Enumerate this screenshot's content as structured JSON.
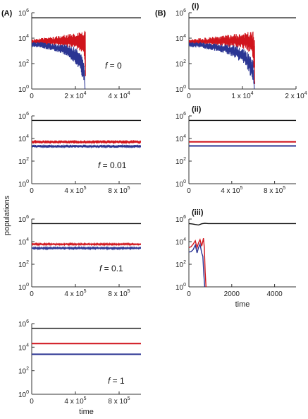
{
  "figure": {
    "label_a": "(A)",
    "label_b": "(B)",
    "ylabel": "populations",
    "xlabel": "time"
  },
  "colors": {
    "black_series": "#111111",
    "red_series": "#d0141c",
    "blue_series": "#2b3593"
  },
  "chart_data": [
    {
      "type": "line",
      "panel": "A1",
      "annotation": {
        "var": "f",
        "eq": " = 0"
      },
      "xlim": [
        0,
        50000
      ],
      "xticks": [
        {
          "v": 0,
          "m": "0",
          "e": ""
        },
        {
          "v": 20000,
          "m": "2 x 10",
          "e": "4"
        },
        {
          "v": 40000,
          "m": "4 x 10",
          "e": "4"
        }
      ],
      "yscale": "log",
      "ylim": [
        1,
        1000000
      ],
      "yticks": [
        {
          "v": 1,
          "m": "10",
          "e": "0"
        },
        {
          "v": 100,
          "m": "10",
          "e": "2"
        },
        {
          "v": 10000,
          "m": "10",
          "e": "4"
        },
        {
          "v": 1000000,
          "m": "10",
          "e": "6"
        }
      ],
      "show_xlabel": false,
      "series": [
        {
          "color": "black",
          "style": "flat",
          "x": [
            0,
            50000
          ],
          "y": [
            400000,
            400000
          ]
        },
        {
          "color": "red",
          "style": "band",
          "x": [
            0,
            4000,
            8000,
            12000,
            16000,
            20000,
            22000,
            24000,
            24600
          ],
          "ylow": [
            3000,
            3000,
            3000,
            2500,
            2000,
            1500,
            1000,
            500,
            1
          ],
          "yhigh": [
            8000,
            10000,
            12000,
            15000,
            20000,
            25000,
            30000,
            35000,
            40000
          ]
        },
        {
          "color": "blue",
          "style": "band",
          "x": [
            0,
            4000,
            8000,
            12000,
            16000,
            20000,
            22000,
            24000,
            24400
          ],
          "ylow": [
            2000,
            1800,
            1200,
            800,
            400,
            100,
            30,
            3,
            1
          ],
          "yhigh": [
            5000,
            5000,
            4000,
            3500,
            3000,
            2000,
            800,
            200,
            1
          ]
        }
      ]
    },
    {
      "type": "line",
      "panel": "B1",
      "title": "(i)",
      "xlim": [
        0,
        20000
      ],
      "xticks": [
        {
          "v": 0,
          "m": "0",
          "e": ""
        },
        {
          "v": 10000,
          "m": "1 x 10",
          "e": "4"
        },
        {
          "v": 20000,
          "m": "2 x 10",
          "e": "4"
        }
      ],
      "yscale": "log",
      "ylim": [
        1,
        1000000
      ],
      "yticks": [
        {
          "v": 1,
          "m": "10",
          "e": "0"
        },
        {
          "v": 100,
          "m": "10",
          "e": "2"
        },
        {
          "v": 10000,
          "m": "10",
          "e": "4"
        },
        {
          "v": 1000000,
          "m": "10",
          "e": "6"
        }
      ],
      "show_xlabel": false,
      "series": [
        {
          "color": "black",
          "style": "flat",
          "x": [
            0,
            20000
          ],
          "y": [
            400000,
            400000
          ]
        },
        {
          "color": "red",
          "style": "band",
          "x": [
            0,
            2000,
            4000,
            6000,
            8000,
            10000,
            11000,
            12000,
            12300
          ],
          "ylow": [
            3000,
            3000,
            3000,
            2500,
            2000,
            1500,
            1000,
            300,
            1
          ],
          "yhigh": [
            8000,
            10000,
            12000,
            15000,
            20000,
            25000,
            30000,
            35000,
            40000
          ]
        },
        {
          "color": "blue",
          "style": "band",
          "x": [
            0,
            2000,
            4000,
            6000,
            8000,
            10000,
            11000,
            12000,
            12200
          ],
          "ylow": [
            2000,
            1800,
            1200,
            800,
            400,
            100,
            30,
            3,
            1
          ],
          "yhigh": [
            5000,
            5000,
            4000,
            3500,
            3000,
            2000,
            800,
            200,
            1
          ]
        }
      ]
    },
    {
      "type": "line",
      "panel": "A2",
      "annotation": {
        "var": "f",
        "eq": " = 0.01"
      },
      "xlim": [
        0,
        1000000
      ],
      "xticks": [
        {
          "v": 0,
          "m": "0",
          "e": ""
        },
        {
          "v": 400000,
          "m": "4 x 10",
          "e": "5"
        },
        {
          "v": 800000,
          "m": "8 x 10",
          "e": "5"
        }
      ],
      "yscale": "log",
      "ylim": [
        1,
        1000000
      ],
      "yticks": [
        {
          "v": 1,
          "m": "10",
          "e": "0"
        },
        {
          "v": 100,
          "m": "10",
          "e": "2"
        },
        {
          "v": 10000,
          "m": "10",
          "e": "4"
        },
        {
          "v": 1000000,
          "m": "10",
          "e": "6"
        }
      ],
      "show_xlabel": false,
      "series": [
        {
          "color": "black",
          "style": "flat",
          "x": [
            0,
            1000000
          ],
          "y": [
            400000,
            400000
          ]
        },
        {
          "color": "red",
          "style": "band",
          "x": [
            0,
            1000000
          ],
          "ylow": [
            3500,
            3500
          ],
          "yhigh": [
            7000,
            7000
          ]
        },
        {
          "color": "blue",
          "style": "band",
          "x": [
            0,
            1000000
          ],
          "ylow": [
            1500,
            1500
          ],
          "yhigh": [
            2800,
            2800
          ]
        }
      ]
    },
    {
      "type": "line",
      "panel": "B2",
      "title": "(ii)",
      "xlim": [
        0,
        1000000
      ],
      "xticks": [
        {
          "v": 0,
          "m": "0",
          "e": ""
        },
        {
          "v": 400000,
          "m": "4 x 10",
          "e": "5"
        },
        {
          "v": 800000,
          "m": "8 x 10",
          "e": "5"
        }
      ],
      "yscale": "log",
      "ylim": [
        1,
        1000000
      ],
      "yticks": [
        {
          "v": 1,
          "m": "10",
          "e": "0"
        },
        {
          "v": 100,
          "m": "10",
          "e": "2"
        },
        {
          "v": 10000,
          "m": "10",
          "e": "4"
        },
        {
          "v": 1000000,
          "m": "10",
          "e": "6"
        }
      ],
      "show_xlabel": false,
      "series": [
        {
          "color": "black",
          "style": "flat",
          "x": [
            0,
            1000000
          ],
          "y": [
            400000,
            400000
          ]
        },
        {
          "color": "red",
          "style": "flat",
          "x": [
            0,
            1000000
          ],
          "y": [
            5000,
            5000
          ]
        },
        {
          "color": "blue",
          "style": "flat",
          "x": [
            0,
            1000000
          ],
          "y": [
            2200,
            2200
          ]
        }
      ]
    },
    {
      "type": "line",
      "panel": "A3",
      "annotation": {
        "var": "f",
        "eq": " = 0.1"
      },
      "xlim": [
        0,
        1000000
      ],
      "xticks": [
        {
          "v": 0,
          "m": "0",
          "e": ""
        },
        {
          "v": 400000,
          "m": "4 x 10",
          "e": "5"
        },
        {
          "v": 800000,
          "m": "8 x 10",
          "e": "5"
        }
      ],
      "yscale": "log",
      "ylim": [
        1,
        1000000
      ],
      "yticks": [
        {
          "v": 1,
          "m": "10",
          "e": "0"
        },
        {
          "v": 100,
          "m": "10",
          "e": "2"
        },
        {
          "v": 10000,
          "m": "10",
          "e": "4"
        },
        {
          "v": 1000000,
          "m": "10",
          "e": "6"
        }
      ],
      "show_xlabel": false,
      "series": [
        {
          "color": "black",
          "style": "flat",
          "x": [
            0,
            1000000
          ],
          "y": [
            400000,
            400000
          ]
        },
        {
          "color": "red",
          "style": "band",
          "x": [
            0,
            1000000
          ],
          "ylow": [
            5000,
            5000
          ],
          "yhigh": [
            7000,
            7000
          ]
        },
        {
          "color": "blue",
          "style": "band",
          "x": [
            0,
            1000000
          ],
          "ylow": [
            2200,
            2200
          ],
          "yhigh": [
            3200,
            3200
          ]
        }
      ]
    },
    {
      "type": "line",
      "panel": "B3",
      "title": "(iii)",
      "xlim": [
        0,
        5000
      ],
      "xticks": [
        {
          "v": 0,
          "m": "0",
          "e": ""
        },
        {
          "v": 2000,
          "m": "2000",
          "e": ""
        },
        {
          "v": 4000,
          "m": "4000",
          "e": ""
        }
      ],
      "yscale": "log",
      "ylim": [
        1,
        1000000
      ],
      "yticks": [
        {
          "v": 1,
          "m": "10",
          "e": "0"
        },
        {
          "v": 100,
          "m": "10",
          "e": "2"
        },
        {
          "v": 10000,
          "m": "10",
          "e": "4"
        },
        {
          "v": 1000000,
          "m": "10",
          "e": "6"
        }
      ],
      "show_xlabel": true,
      "series": [
        {
          "color": "black",
          "style": "line",
          "x": [
            0,
            150,
            300,
            450,
            600,
            750,
            900,
            1200,
            5000
          ],
          "y": [
            400000,
            370000,
            330000,
            300000,
            380000,
            420000,
            400000,
            400000,
            400000
          ]
        },
        {
          "color": "red",
          "style": "line",
          "x": [
            0,
            100,
            200,
            300,
            380,
            450,
            520,
            600,
            680,
            720,
            760,
            800
          ],
          "y": [
            3000,
            3500,
            6000,
            12000,
            3000,
            8000,
            15000,
            4000,
            20000,
            3000,
            20,
            1
          ]
        },
        {
          "color": "blue",
          "style": "line",
          "x": [
            0,
            100,
            200,
            300,
            380,
            450,
            520,
            600,
            650,
            700,
            740
          ],
          "y": [
            1200,
            1300,
            2000,
            5000,
            1000,
            3000,
            6000,
            1000,
            500,
            10,
            1
          ]
        }
      ]
    },
    {
      "type": "line",
      "panel": "A4",
      "annotation": {
        "var": "f",
        "eq": " = 1"
      },
      "xlim": [
        0,
        1000000
      ],
      "xticks": [
        {
          "v": 0,
          "m": "0",
          "e": ""
        },
        {
          "v": 400000,
          "m": "4 x 10",
          "e": "5"
        },
        {
          "v": 800000,
          "m": "8 x 10",
          "e": "5"
        }
      ],
      "yscale": "log",
      "ylim": [
        1,
        1000000
      ],
      "yticks": [
        {
          "v": 1,
          "m": "10",
          "e": "0"
        },
        {
          "v": 100,
          "m": "10",
          "e": "2"
        },
        {
          "v": 10000,
          "m": "10",
          "e": "4"
        },
        {
          "v": 1000000,
          "m": "10",
          "e": "6"
        }
      ],
      "show_xlabel": true,
      "series": [
        {
          "color": "black",
          "style": "flat",
          "x": [
            0,
            1000000
          ],
          "y": [
            400000,
            400000
          ]
        },
        {
          "color": "red",
          "style": "flat",
          "x": [
            0,
            1000000
          ],
          "y": [
            20000,
            20000
          ]
        },
        {
          "color": "blue",
          "style": "flat",
          "x": [
            0,
            1000000
          ],
          "y": [
            2500,
            2500
          ]
        }
      ]
    }
  ]
}
